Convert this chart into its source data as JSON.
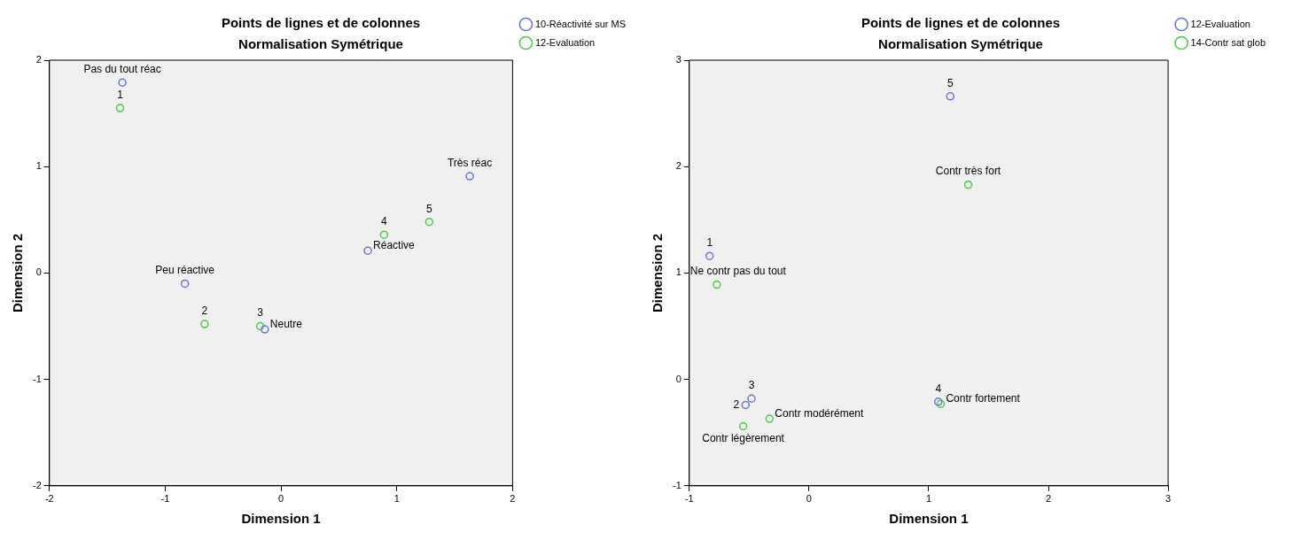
{
  "chart_data": [
    {
      "type": "scatter",
      "title": "Points de lignes et de colonnes",
      "subtitle": "Normalisation Symétrique",
      "xlabel": "Dimension 1",
      "ylabel": "Dimension 2",
      "xlim": [
        -2,
        2
      ],
      "ylim": [
        -2,
        2
      ],
      "xticks": [
        -2,
        -1,
        0,
        1,
        2
      ],
      "yticks": [
        -2,
        -1,
        0,
        1,
        2
      ],
      "legend": "right",
      "marker": "circle",
      "series": [
        {
          "name": "10-Réactivité sur MS",
          "color": "#6878cc",
          "x": [
            -1.37,
            -0.83,
            -0.14,
            0.75,
            1.63
          ],
          "values": [
            1.79,
            -0.1,
            -0.53,
            0.21,
            0.91
          ]
        },
        {
          "name": "12-Evaluation",
          "color": "#4cc84c",
          "x": [
            -1.39,
            -0.66,
            -0.18,
            0.89,
            1.28
          ],
          "values": [
            1.55,
            -0.48,
            -0.5,
            0.36,
            0.48
          ]
        }
      ],
      "annotations": [
        {
          "text": "Pas du tout réac",
          "x": -1.37,
          "y": 1.79
        },
        {
          "text": "Peu réactive",
          "x": -0.83,
          "y": -0.1
        },
        {
          "text": "Neutre",
          "x": -0.14,
          "y": -0.53
        },
        {
          "text": "Réactive",
          "x": 0.75,
          "y": 0.21
        },
        {
          "text": "Très réac",
          "x": 1.63,
          "y": 0.91
        },
        {
          "text": "1",
          "x": -1.39,
          "y": 1.55
        },
        {
          "text": "2",
          "x": -0.66,
          "y": -0.48
        },
        {
          "text": "3",
          "x": -0.18,
          "y": -0.5
        },
        {
          "text": "4",
          "x": 0.89,
          "y": 0.36
        },
        {
          "text": "5",
          "x": 1.28,
          "y": 0.48
        }
      ]
    },
    {
      "type": "scatter",
      "title": "Points de lignes et de colonnes",
      "subtitle": "Normalisation Symétrique",
      "xlabel": "Dimension 1",
      "ylabel": "Dimension 2",
      "xlim": [
        -1,
        3
      ],
      "ylim": [
        -1,
        3
      ],
      "xticks": [
        -1,
        0,
        1,
        2,
        3
      ],
      "yticks": [
        -1,
        0,
        1,
        2,
        3
      ],
      "legend": "right",
      "marker": "circle",
      "series": [
        {
          "name": "12-Evaluation",
          "color": "#6878cc",
          "x": [
            -0.83,
            -0.53,
            -0.48,
            1.08,
            1.18
          ],
          "values": [
            1.16,
            -0.24,
            -0.18,
            -0.21,
            2.66
          ]
        },
        {
          "name": "14-Contr sat glob",
          "color": "#4cc84c",
          "x": [
            -0.77,
            -0.55,
            -0.33,
            1.1,
            1.33
          ],
          "values": [
            0.89,
            -0.44,
            -0.37,
            -0.23,
            1.83
          ]
        }
      ],
      "annotations": [
        {
          "text": "1",
          "x": -0.83,
          "y": 1.16
        },
        {
          "text": "2",
          "x": -0.53,
          "y": -0.24
        },
        {
          "text": "3",
          "x": -0.48,
          "y": -0.18
        },
        {
          "text": "4",
          "x": 1.08,
          "y": -0.21
        },
        {
          "text": "5",
          "x": 1.18,
          "y": 2.66
        },
        {
          "text": "Ne contr pas du tout",
          "x": -0.77,
          "y": 0.89
        },
        {
          "text": "Contr légèrement",
          "x": -0.55,
          "y": -0.44
        },
        {
          "text": "Contr modérément",
          "x": -0.33,
          "y": -0.37
        },
        {
          "text": "Contr fortement",
          "x": 1.1,
          "y": -0.23
        },
        {
          "text": "Contr très fort",
          "x": 1.33,
          "y": 1.83
        }
      ]
    }
  ]
}
